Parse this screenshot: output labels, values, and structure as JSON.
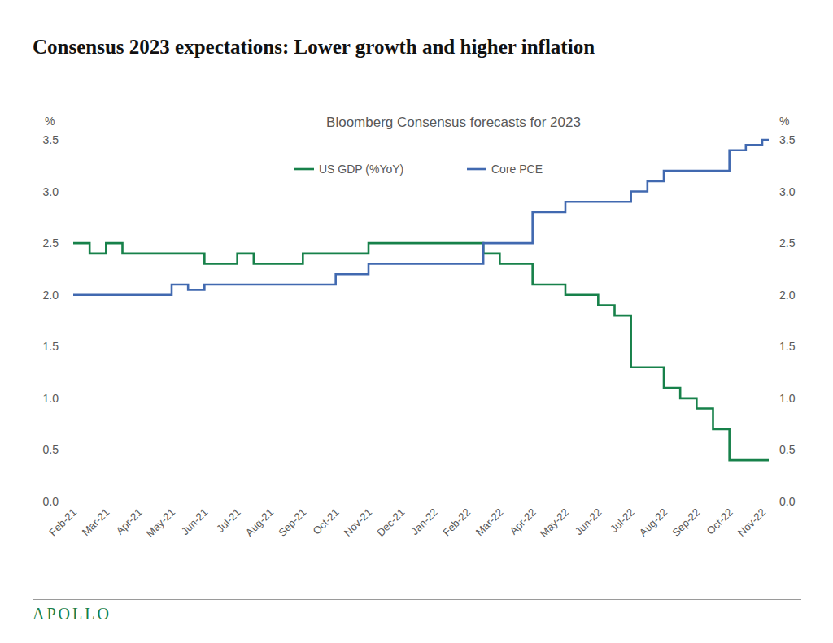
{
  "chart_data": {
    "type": "line",
    "title": "Consensus 2023 expectations: Lower growth and higher inflation",
    "subtitle": "Bloomberg Consensus forecasts for 2023",
    "y_label": "%",
    "y2_label": "%",
    "footer": "APOLLO",
    "categories": [
      "Feb-21",
      null,
      "Mar-21",
      null,
      "Apr-21",
      null,
      "May-21",
      null,
      "Jun-21",
      null,
      "Jul-21",
      null,
      "Aug-21",
      null,
      "Sep-21",
      null,
      "Oct-21",
      null,
      "Nov-21",
      null,
      "Dec-21",
      null,
      "Jan-22",
      null,
      "Feb-22",
      null,
      "Mar-22",
      null,
      "Apr-22",
      null,
      "May-22",
      null,
      "Jun-22",
      null,
      "Jul-22",
      null,
      "Aug-22",
      null,
      "Sep-22",
      null,
      "Oct-22",
      null,
      "Nov-22"
    ],
    "series": [
      {
        "name": "US GDP (%YoY)",
        "color": "#17814a",
        "line_style": "step",
        "values": [
          2.5,
          2.4,
          2.5,
          2.4,
          2.4,
          2.4,
          2.4,
          2.4,
          2.3,
          2.3,
          2.4,
          2.3,
          2.3,
          2.3,
          2.4,
          2.4,
          2.4,
          2.4,
          2.5,
          2.5,
          2.5,
          2.5,
          2.5,
          2.5,
          2.5,
          2.4,
          2.3,
          2.3,
          2.1,
          2.1,
          2.0,
          2.0,
          1.9,
          1.8,
          1.3,
          1.3,
          1.1,
          1.0,
          0.9,
          0.7,
          0.4,
          0.4,
          0.4
        ]
      },
      {
        "name": "Core PCE",
        "color": "#4169b0",
        "line_style": "step",
        "values": [
          2.0,
          2.0,
          2.0,
          2.0,
          2.0,
          2.0,
          2.1,
          2.05,
          2.1,
          2.1,
          2.1,
          2.1,
          2.1,
          2.1,
          2.1,
          2.1,
          2.2,
          2.2,
          2.3,
          2.3,
          2.3,
          2.3,
          2.3,
          2.3,
          2.3,
          2.5,
          2.5,
          2.5,
          2.8,
          2.8,
          2.9,
          2.9,
          2.9,
          2.9,
          3.0,
          3.1,
          3.2,
          3.2,
          3.2,
          3.2,
          3.4,
          3.45,
          3.5
        ]
      }
    ],
    "ylim": [
      0,
      3.5
    ],
    "yticks": [
      {
        "value": 0,
        "label": "0.0"
      },
      0.5,
      {
        "value": 1,
        "label": "1.0"
      },
      1.5,
      {
        "value": 2,
        "label": "2.0"
      },
      2.5,
      {
        "value": 3,
        "label": "3.0"
      },
      3.5
    ],
    "y2lim": [
      0,
      3.5
    ],
    "y2ticks": [
      {
        "value": 0,
        "label": "0.0"
      },
      0.5,
      {
        "value": 1,
        "label": "1.0"
      },
      1.5,
      {
        "value": 2,
        "label": "2.0"
      },
      2.5,
      {
        "value": 3,
        "label": "3.0"
      },
      3.5
    ],
    "grid": false,
    "legend": "top"
  }
}
